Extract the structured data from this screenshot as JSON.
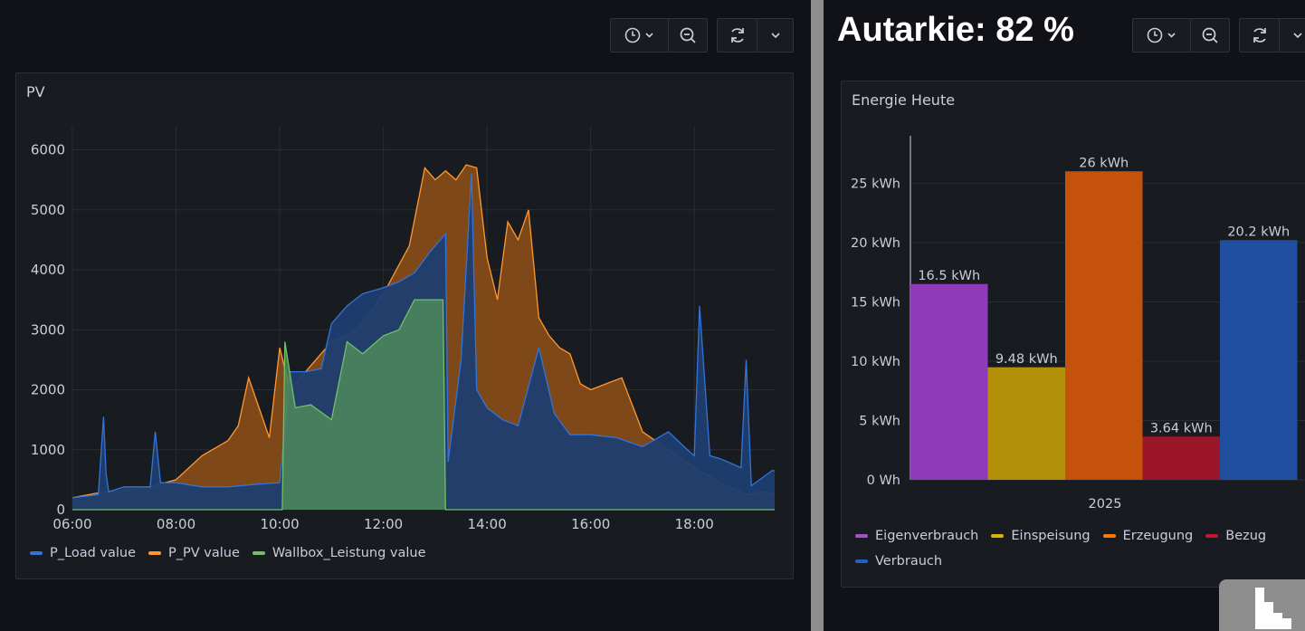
{
  "autarkie": {
    "label": "Autarkie: 82 %"
  },
  "pv_panel": {
    "title": "PV",
    "legend": [
      {
        "name": "P_Load value",
        "color": "#3274d9"
      },
      {
        "name": "P_PV value",
        "color": "#ff9830"
      },
      {
        "name": "Wallbox_Leistung value",
        "color": "#73bf69"
      }
    ]
  },
  "energy_panel": {
    "title": "Energie Heute",
    "legend": [
      {
        "name": "Eigenverbrauch",
        "color": "#a352cc"
      },
      {
        "name": "Einspeisung",
        "color": "#e0b400"
      },
      {
        "name": "Erzeugung",
        "color": "#ff780a"
      },
      {
        "name": "Bezug",
        "color": "#c4162a"
      },
      {
        "name": "Verbrauch",
        "color": "#1f60c4"
      }
    ]
  },
  "toolbar_icons": [
    "clock-icon",
    "chevron-down-icon",
    "zoom-out-icon",
    "refresh-icon",
    "chevron-down-icon"
  ],
  "chart_data": [
    {
      "type": "area",
      "title": "PV",
      "x_label_ticks": [
        "06:00",
        "08:00",
        "10:00",
        "12:00",
        "14:00",
        "16:00",
        "18:00"
      ],
      "y_ticks": [
        "0",
        "1000",
        "2000",
        "3000",
        "4000",
        "5000",
        "6000"
      ],
      "ylim": [
        0,
        6400
      ],
      "xlim_hours": [
        6.0,
        19.55
      ],
      "grid": true,
      "legend_position": "bottom-left",
      "series": [
        {
          "name": "P_Load value",
          "color": "#3274d9",
          "x": [
            6.0,
            6.5,
            6.6,
            6.65,
            6.7,
            7.0,
            7.5,
            7.6,
            7.7,
            8.0,
            8.5,
            9.0,
            9.5,
            10.0,
            10.2,
            10.5,
            10.8,
            11.0,
            11.3,
            11.6,
            12.0,
            12.3,
            12.6,
            12.9,
            13.2,
            13.25,
            13.5,
            13.7,
            13.8,
            14.0,
            14.3,
            14.6,
            15.0,
            15.3,
            15.6,
            16.0,
            16.5,
            17.0,
            17.5,
            17.8,
            18.0,
            18.1,
            18.3,
            18.5,
            18.9,
            19.0,
            19.1,
            19.5,
            19.55
          ],
          "y": [
            200,
            250,
            1550,
            600,
            300,
            380,
            380,
            1300,
            450,
            450,
            380,
            380,
            420,
            450,
            2300,
            2300,
            2350,
            3100,
            3400,
            3600,
            3700,
            3800,
            3950,
            4300,
            4600,
            800,
            2500,
            5600,
            2000,
            1700,
            1500,
            1400,
            2700,
            1600,
            1250,
            1250,
            1200,
            1050,
            1300,
            1050,
            900,
            3400,
            900,
            850,
            700,
            2500,
            400,
            650,
            650
          ]
        },
        {
          "name": "P_PV value",
          "color": "#ff9830",
          "x": [
            6.0,
            6.5,
            7.0,
            7.5,
            8.0,
            8.5,
            9.0,
            9.2,
            9.4,
            9.6,
            9.8,
            10.0,
            10.2,
            10.5,
            11.0,
            11.5,
            12.0,
            12.5,
            12.8,
            13.0,
            13.2,
            13.4,
            13.6,
            13.8,
            14.0,
            14.2,
            14.4,
            14.6,
            14.8,
            15.0,
            15.2,
            15.4,
            15.6,
            15.8,
            16.0,
            16.3,
            16.6,
            17.0,
            17.5,
            18.0,
            18.5,
            19.0,
            19.3,
            19.55
          ],
          "y": [
            200,
            280,
            320,
            380,
            500,
            900,
            1150,
            1400,
            2200,
            1700,
            1200,
            2700,
            2000,
            2300,
            2800,
            3000,
            3600,
            4400,
            5700,
            5500,
            5650,
            5500,
            5750,
            5700,
            4200,
            3500,
            4800,
            4500,
            5000,
            3200,
            2900,
            2700,
            2600,
            2100,
            2000,
            2100,
            2200,
            1300,
            1000,
            700,
            450,
            250,
            300,
            250
          ]
        },
        {
          "name": "Wallbox_Leistung value",
          "color": "#73bf69",
          "x": [
            6.0,
            10.05,
            10.1,
            10.3,
            10.6,
            11.0,
            11.3,
            11.6,
            12.0,
            12.3,
            12.6,
            13.0,
            13.15,
            13.2,
            19.55
          ],
          "y": [
            0,
            0,
            2800,
            1700,
            1750,
            1500,
            2800,
            2600,
            2900,
            3000,
            3500,
            3500,
            3500,
            0,
            0
          ]
        }
      ]
    },
    {
      "type": "bar",
      "title": "Energie Heute",
      "categories": [
        "2025"
      ],
      "y_ticks": [
        "0 Wh",
        "5 kWh",
        "10 kWh",
        "15 kWh",
        "20 kWh",
        "25 kWh"
      ],
      "ylim": [
        0,
        29
      ],
      "legend_position": "bottom-left",
      "series": [
        {
          "name": "Eigenverbrauch",
          "value": 16.5,
          "label": "16.5 kWh",
          "color": "#8f3bb8"
        },
        {
          "name": "Einspeisung",
          "value": 9.48,
          "label": "9.48 kWh",
          "color": "#b38f0a"
        },
        {
          "name": "Erzeugung",
          "value": 26,
          "label": "26 kWh",
          "color": "#c4520a"
        },
        {
          "name": "Bezug",
          "value": 3.64,
          "label": "3.64 kWh",
          "color": "#9b1628"
        },
        {
          "name": "Verbrauch",
          "value": 20.2,
          "label": "20.2 kWh",
          "color": "#1f4f9e"
        }
      ]
    }
  ]
}
